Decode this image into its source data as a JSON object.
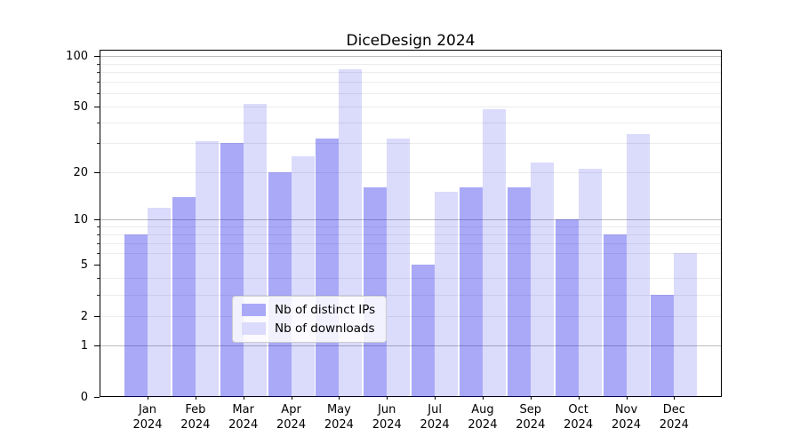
{
  "chart_data": {
    "type": "bar",
    "title": "DiceDesign 2024",
    "months": [
      "Jan",
      "Feb",
      "Mar",
      "Apr",
      "May",
      "Jun",
      "Jul",
      "Aug",
      "Sep",
      "Oct",
      "Nov",
      "Dec"
    ],
    "year_label": "2024",
    "series": [
      {
        "name": "Nb of distinct IPs",
        "color": "rgba(10,10,235,0.35)",
        "color_hex": "#a9a9f8",
        "values": [
          8,
          14,
          30,
          20,
          32,
          16,
          5,
          16,
          16,
          10,
          8,
          3
        ]
      },
      {
        "name": "Nb of downloads",
        "color": "rgba(10,10,235,0.145)",
        "color_hex": "#dbdbfc",
        "values": [
          12,
          31,
          52,
          25,
          83,
          32,
          15,
          48,
          23,
          21,
          34,
          6
        ]
      }
    ],
    "yscale": "log1p",
    "ylim": [
      0,
      108
    ],
    "y_tick_values": [
      0,
      1,
      2,
      5,
      10,
      20,
      50,
      100
    ],
    "y_major_grid": [
      1,
      10,
      100
    ],
    "y_minor_grid": [
      2,
      3,
      4,
      6,
      7,
      8,
      9,
      20,
      30,
      40,
      50,
      60,
      70,
      80,
      90
    ],
    "grid": true,
    "legend_position": "lower center",
    "xlabel": "",
    "ylabel": ""
  }
}
